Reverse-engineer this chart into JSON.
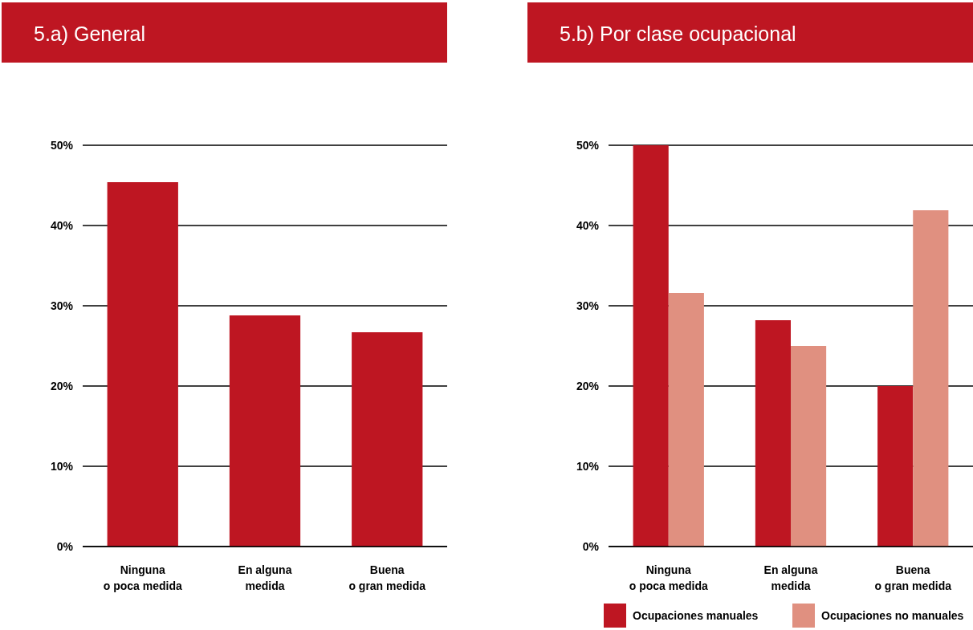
{
  "chart_data": [
    {
      "type": "bar",
      "title": "5.a) General",
      "categories": [
        "Ninguna\no poca medida",
        "En alguna\nmedida",
        "Buena\no gran medida"
      ],
      "series": [
        {
          "color": "#be1622",
          "values": [
            45.4,
            28.8,
            26.7
          ]
        }
      ],
      "ylim": [
        0,
        50
      ],
      "yticks": [
        {
          "value": 0,
          "label": "0%"
        },
        {
          "value": 10,
          "label": "10%"
        },
        {
          "value": 20,
          "label": "20%"
        },
        {
          "value": 30,
          "label": "30%"
        },
        {
          "value": 40,
          "label": "40%"
        },
        {
          "value": 50,
          "label": "50%"
        }
      ],
      "grid": "y",
      "legend": false
    },
    {
      "type": "bar",
      "title": "5.b) Por clase ocupacional",
      "categories": [
        "Ninguna\no poca medida",
        "En alguna\nmedida",
        "Buena\no gran medida"
      ],
      "series": [
        {
          "name": "Ocupaciones manuales",
          "color": "#be1622",
          "values": [
            50,
            28.2,
            20
          ]
        },
        {
          "name": "Ocupaciones no manuales",
          "color": "#e09080",
          "values": [
            31.6,
            25,
            41.9
          ]
        }
      ],
      "ylim": [
        0,
        50
      ],
      "yticks": [
        {
          "value": 0,
          "label": "0%"
        },
        {
          "value": 10,
          "label": "10%"
        },
        {
          "value": 20,
          "label": "20%"
        },
        {
          "value": 30,
          "label": "30%"
        },
        {
          "value": 40,
          "label": "40%"
        },
        {
          "value": 50,
          "label": "50%"
        }
      ],
      "grid": "y",
      "legend": "bottom"
    }
  ]
}
